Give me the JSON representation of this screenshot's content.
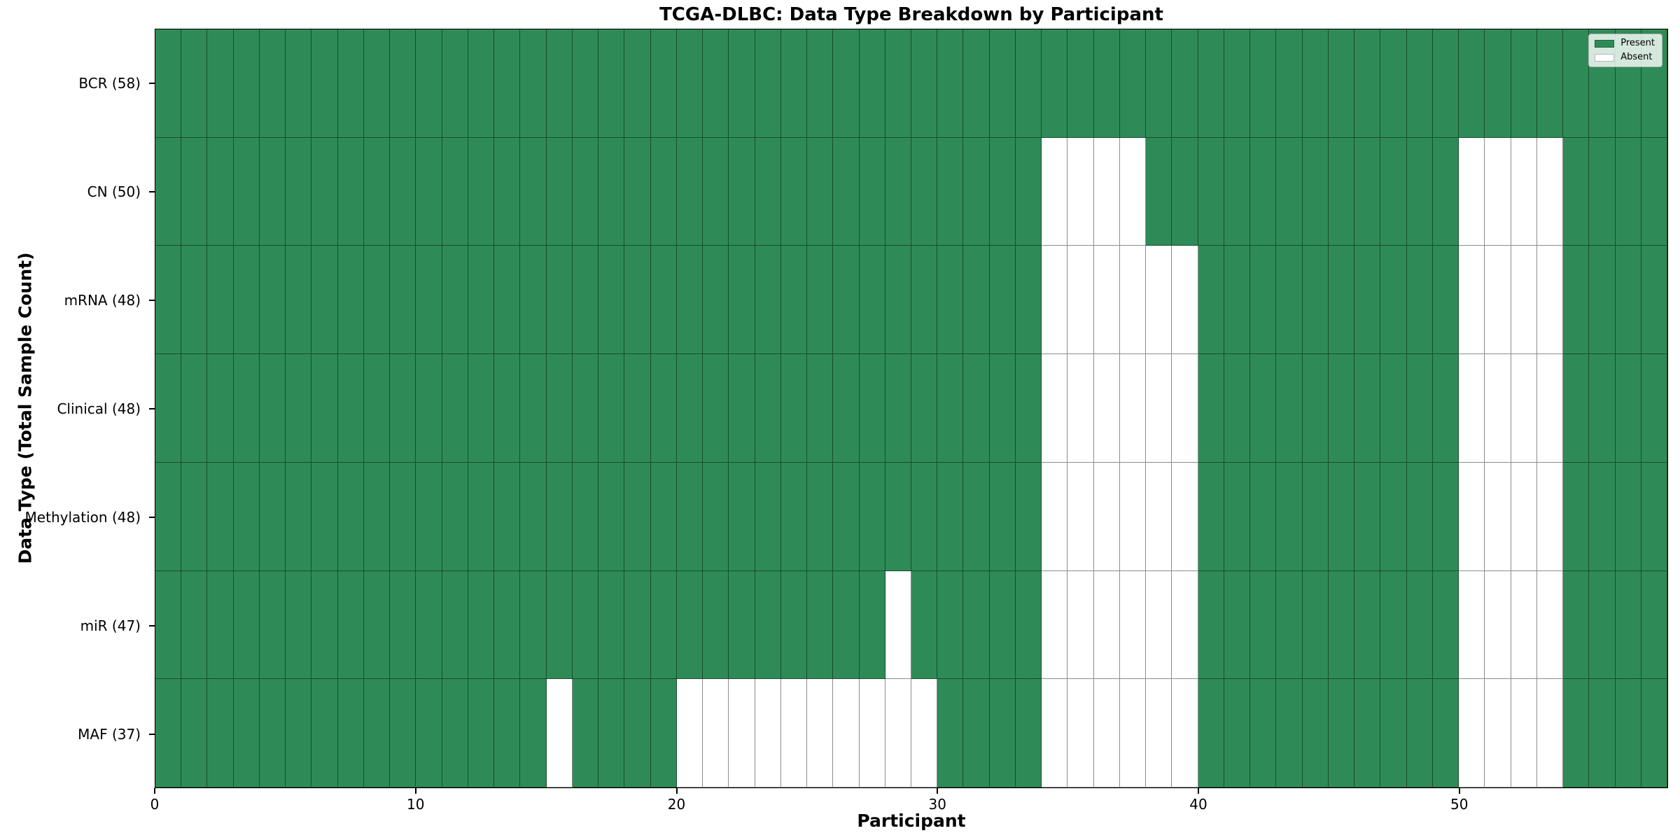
{
  "figure": {
    "background": "#ffffff"
  },
  "chart_data": {
    "type": "heatmap",
    "title": "TCGA-DLBC: Data Type Breakdown by Participant",
    "xlabel": "Participant",
    "ylabel": "Data Type (Total Sample Count)",
    "x_range": [
      0,
      58
    ],
    "n_participants": 58,
    "x_ticks": [
      0,
      10,
      20,
      30,
      40,
      50
    ],
    "grid": "cell-borders",
    "colors": {
      "present": "#2e8b57",
      "absent": "#ffffff",
      "gridline": "rgba(0,0,0,0.45)",
      "spine": "#000000"
    },
    "legend": {
      "position": "upper-right",
      "items": [
        {
          "label": "Present",
          "color": "#2e8b57"
        },
        {
          "label": "Absent",
          "color": "#ffffff"
        }
      ]
    },
    "rows": [
      {
        "label": "BCR (58)",
        "data_type": "BCR",
        "present_count": 58,
        "absent_participants": []
      },
      {
        "label": "CN (50)",
        "data_type": "CN",
        "present_count": 50,
        "absent_participants": [
          34,
          35,
          36,
          37,
          50,
          51,
          52,
          53
        ]
      },
      {
        "label": "mRNA (48)",
        "data_type": "mRNA",
        "present_count": 48,
        "absent_participants": [
          34,
          35,
          36,
          37,
          38,
          39,
          50,
          51,
          52,
          53
        ]
      },
      {
        "label": "Clinical (48)",
        "data_type": "Clinical",
        "present_count": 48,
        "absent_participants": [
          34,
          35,
          36,
          37,
          38,
          39,
          50,
          51,
          52,
          53
        ]
      },
      {
        "label": "Methylation (48)",
        "data_type": "Methylation",
        "present_count": 48,
        "absent_participants": [
          34,
          35,
          36,
          37,
          38,
          39,
          50,
          51,
          52,
          53
        ]
      },
      {
        "label": "miR (47)",
        "data_type": "miR",
        "present_count": 47,
        "absent_participants": [
          28,
          34,
          35,
          36,
          37,
          38,
          39,
          50,
          51,
          52,
          53
        ]
      },
      {
        "label": "MAF (37)",
        "data_type": "MAF",
        "present_count": 37,
        "absent_participants": [
          15,
          20,
          21,
          22,
          23,
          24,
          25,
          26,
          27,
          28,
          29,
          34,
          35,
          36,
          37,
          38,
          39,
          50,
          51,
          52,
          53
        ]
      }
    ]
  }
}
